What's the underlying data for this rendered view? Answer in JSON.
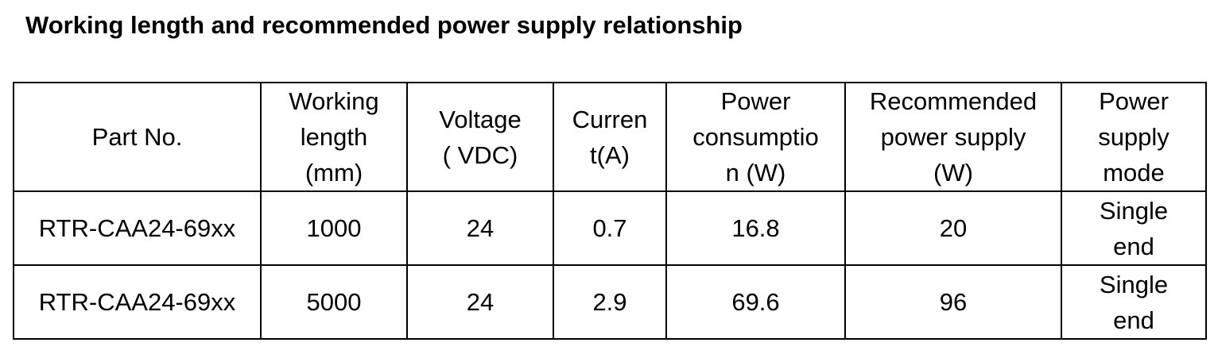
{
  "title": "Working length and recommended power supply relationship",
  "table": {
    "header": [
      [
        "Part No."
      ],
      [
        "Working",
        "length",
        "(mm)"
      ],
      [
        "Voltage",
        "( VDC)"
      ],
      [
        "Curren",
        "t(A)"
      ],
      [
        "Power",
        "consumptio",
        "n (W)"
      ],
      [
        "Recommended",
        "power supply",
        "(W)"
      ],
      [
        "Power",
        "supply",
        "mode"
      ]
    ],
    "rows": [
      [
        [
          "RTR-CAA24-69xx"
        ],
        [
          "1000"
        ],
        [
          "24"
        ],
        [
          "0.7"
        ],
        [
          "16.8"
        ],
        [
          "20"
        ],
        [
          "Single",
          "end"
        ]
      ],
      [
        [
          "RTR-CAA24-69xx"
        ],
        [
          "5000"
        ],
        [
          "24"
        ],
        [
          "2.9"
        ],
        [
          "69.6"
        ],
        [
          "96"
        ],
        [
          "Single",
          "end"
        ]
      ]
    ]
  }
}
